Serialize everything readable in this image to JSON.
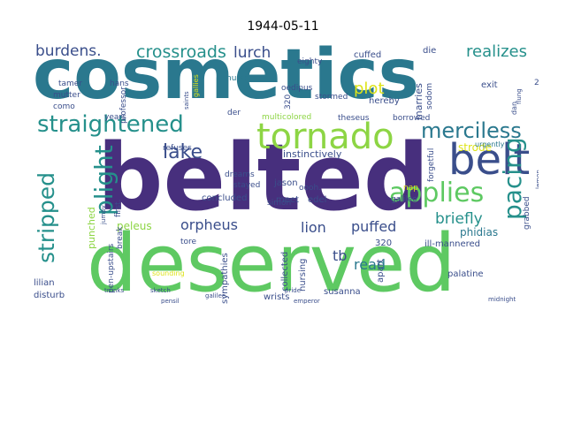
{
  "title": "1944-05-11",
  "palette": {
    "purple": "#472f7d",
    "indigo": "#3a4e8b",
    "teal": "#2a788e",
    "sea": "#25908b",
    "green": "#3bb66e",
    "lime": "#8dd544",
    "yellow": "#dde318",
    "gray": "#777777"
  },
  "words": {
    "cosmetics": "cosmetics",
    "belted": "belted",
    "deserved": "deserved",
    "tornado": "tornado",
    "belt": "belt",
    "straightened": "straightened",
    "applies": "applies",
    "merciless": "merciless",
    "pacing": "pacing",
    "plight": "plight",
    "stripped": "stripped",
    "lake": "lake",
    "crossroads": "crossroads",
    "burdens": "burdens.",
    "realizes": "realizes",
    "lurch": "lurch",
    "plot": "plot",
    "orpheus": "orpheus",
    "lion": "lion",
    "puffed": "puffed",
    "briefly": "briefly",
    "read": "read",
    "tb": "tb",
    "peleus": "peleus",
    "instinctively": "instinctively",
    "phidias": "phidias",
    "strode": "strode",
    "ill_mannered": "ill-mannered",
    "concluded": "concluded",
    "meet": "meet",
    "edel": "edel",
    "jason": "jason",
    "dreams": "dreams",
    "stayed": "stayed",
    "ooh": "oooh.",
    "lilian": "lilian",
    "disturb": "disturb",
    "mutter": "mutter",
    "como": "como",
    "cuffed": "cuffed",
    "die": "die",
    "eighty": "eighty",
    "nurse": "nurse",
    "oedipus": "oedipus",
    "hereby": "hereby",
    "marries": "marries",
    "exit": "exit",
    "sodom": "sodom",
    "stormed": "stormed",
    "theseus": "theseus",
    "borrowed": "borrowed",
    "galileo": "galileo",
    "palatine": "palatine",
    "susanna": "susanna",
    "collected": "collected",
    "wrists": "wrists",
    "sympathies": "sympathies",
    "nursing": "nursing",
    "apart": "apart",
    "punched": "punched",
    "pen_upstairs": "pen-upstairs",
    "break": "break",
    "first": "first.",
    "tore": "tore",
    "simon": "simon",
    "refuses": "refuses",
    "der": "der",
    "urgently": "urgently",
    "forgetful": "forgetful",
    "grabbed": "grabbed",
    "n320a": "320",
    "n320b": "320",
    "n220": "220",
    "professor": "professor",
    "years": "years",
    "tamer": "tamer",
    "hans": "hans",
    "multicolored": "multicolored",
    "nap": "nap",
    "dan": "dan",
    "galilee": "galilee",
    "gallies": "gallies",
    "flung": "flung",
    "saints": "saints",
    "pensil": "pensil",
    "jumpy": "jumpy",
    "lemon": "lemon",
    "sounding": "sounding",
    "trunks": "trunks",
    "sketch": "sketch",
    "emperor": "emperor",
    "pride": "pride",
    "midnight": "midnight"
  }
}
